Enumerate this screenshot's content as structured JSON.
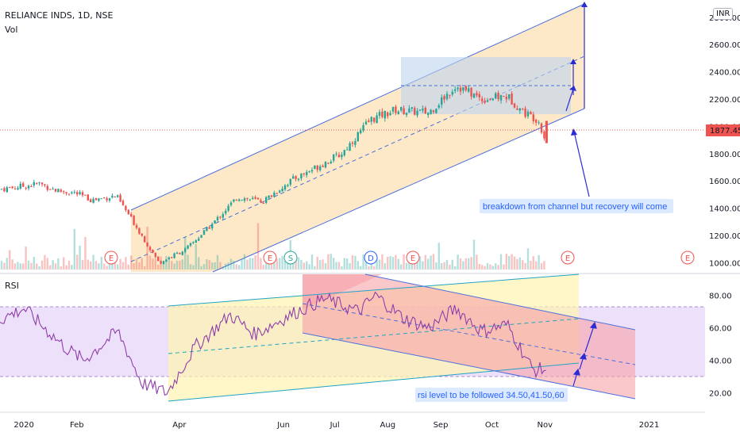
{
  "header": {
    "symbol": "RELIANCE INDS, 1D, NSE",
    "vol_label": "Vol",
    "rsi_label": "RSI",
    "currency": "INR"
  },
  "colors": {
    "up": "#26a69a",
    "down": "#ef5350",
    "channel_line": "#4a6fdc",
    "channel_fill": "#fde8c8",
    "box_fill": "#bcd4ee",
    "rsi_line": "#8e3fa8",
    "rsi_band": "#ede0fb",
    "last_price": "#ef5350",
    "annotation_bg": "#dbeaff",
    "annotation_text": "#2962ff"
  },
  "chart_data": [
    {
      "type": "candlestick",
      "title": "RELIANCE INDS, 1D, NSE",
      "yaxis": {
        "ticks": [
          1000,
          1200,
          1400,
          1600,
          1800,
          2000,
          2200,
          2400,
          2600,
          2800
        ],
        "tick_labels": [
          "1000.00",
          "1200.00",
          "1400.00",
          "1600.00",
          "1800.00",
          "2000.00",
          "2200.00",
          "2400.00",
          "2600.00",
          "2800.00"
        ],
        "range": [
          950,
          2880
        ]
      },
      "xaxis": {
        "ticks": [
          "2020",
          "Feb",
          "Apr",
          "Jun",
          "Jul",
          "Aug",
          "Sep",
          "Oct",
          "Nov",
          "2021"
        ]
      },
      "last_price": 1877.45,
      "last_price_label": "1877.45",
      "price_path": [
        {
          "date": "2019-12-18",
          "close": 1540
        },
        {
          "date": "2019-12-31",
          "close": 1560
        },
        {
          "date": "2020-01-10",
          "close": 1580
        },
        {
          "date": "2020-01-20",
          "close": 1530
        },
        {
          "date": "2020-01-31",
          "close": 1510
        },
        {
          "date": "2020-02-10",
          "close": 1460
        },
        {
          "date": "2020-02-24",
          "close": 1490
        },
        {
          "date": "2020-03-05",
          "close": 1300
        },
        {
          "date": "2020-03-20",
          "close": 1000
        },
        {
          "date": "2020-04-05",
          "close": 1100
        },
        {
          "date": "2020-04-20",
          "close": 1280
        },
        {
          "date": "2020-05-05",
          "close": 1480
        },
        {
          "date": "2020-05-20",
          "close": 1450
        },
        {
          "date": "2020-06-05",
          "close": 1600
        },
        {
          "date": "2020-06-20",
          "close": 1700
        },
        {
          "date": "2020-07-05",
          "close": 1800
        },
        {
          "date": "2020-07-22",
          "close": 2050
        },
        {
          "date": "2020-08-05",
          "close": 2120
        },
        {
          "date": "2020-08-25",
          "close": 2100
        },
        {
          "date": "2020-09-10",
          "close": 2300
        },
        {
          "date": "2020-09-25",
          "close": 2200
        },
        {
          "date": "2020-10-10",
          "close": 2220
        },
        {
          "date": "2020-10-20",
          "close": 2100
        },
        {
          "date": "2020-10-28",
          "close": 2050
        },
        {
          "date": "2020-11-02",
          "close": 1877
        }
      ],
      "events": [
        "E",
        "E",
        "S",
        "D",
        "E",
        "E",
        "E"
      ],
      "annotation": "breakdown from channel but recovery will come"
    },
    {
      "type": "line",
      "title": "RSI",
      "yaxis": {
        "ticks": [
          20,
          40,
          60,
          80
        ],
        "tick_labels": [
          "20.00",
          "40.00",
          "60.00",
          "80.00"
        ],
        "range": [
          10,
          92
        ]
      },
      "band": [
        30,
        70
      ],
      "series": [
        {
          "values_by_date": [
            {
              "date": "2019-12-18",
              "value": 65
            },
            {
              "date": "2020-01-01",
              "value": 72
            },
            {
              "date": "2020-01-15",
              "value": 58
            },
            {
              "date": "2020-01-25",
              "value": 48
            },
            {
              "date": "2020-02-05",
              "value": 40
            },
            {
              "date": "2020-02-25",
              "value": 58
            },
            {
              "date": "2020-03-10",
              "value": 26
            },
            {
              "date": "2020-03-25",
              "value": 20
            },
            {
              "date": "2020-04-10",
              "value": 48
            },
            {
              "date": "2020-05-01",
              "value": 68
            },
            {
              "date": "2020-05-15",
              "value": 56
            },
            {
              "date": "2020-06-05",
              "value": 68
            },
            {
              "date": "2020-06-25",
              "value": 78
            },
            {
              "date": "2020-07-15",
              "value": 70
            },
            {
              "date": "2020-07-25",
              "value": 80
            },
            {
              "date": "2020-08-10",
              "value": 66
            },
            {
              "date": "2020-08-25",
              "value": 60
            },
            {
              "date": "2020-09-10",
              "value": 72
            },
            {
              "date": "2020-09-25",
              "value": 58
            },
            {
              "date": "2020-10-10",
              "value": 62
            },
            {
              "date": "2020-10-25",
              "value": 34
            },
            {
              "date": "2020-11-02",
              "value": 34.5
            }
          ]
        }
      ],
      "annotation": "rsi level to be followed 34.50,41.50,60"
    }
  ]
}
